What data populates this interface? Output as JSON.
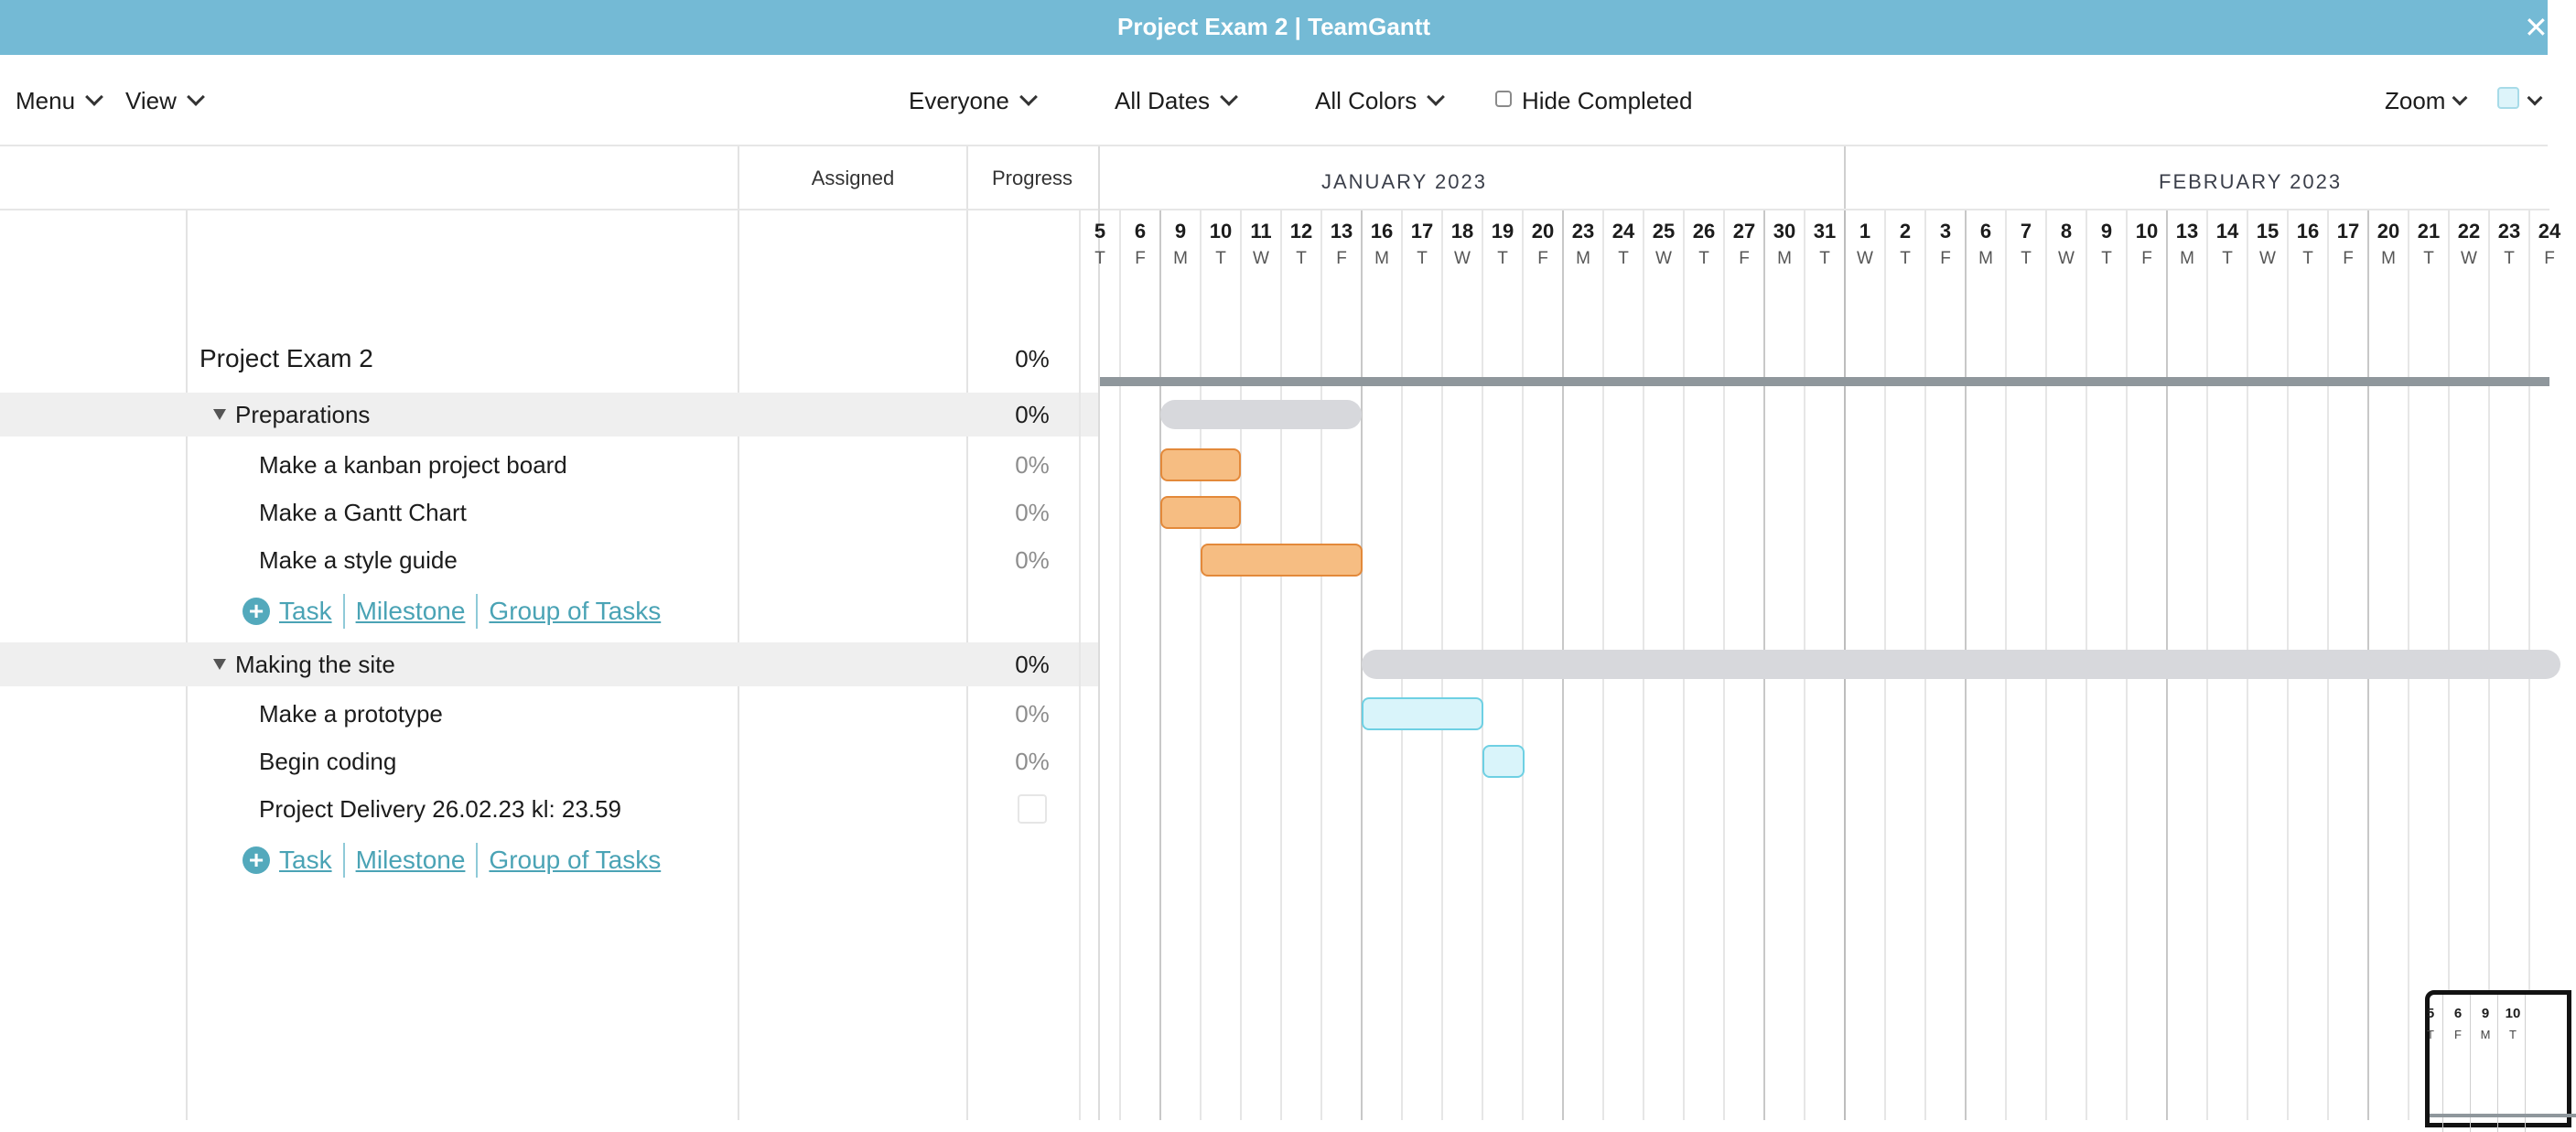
{
  "window": {
    "title": "Project Exam 2 | TeamGantt",
    "close_glyph": "✕"
  },
  "toolbar": {
    "menu": "Menu",
    "view": "View",
    "everyone": "Everyone",
    "all_dates": "All Dates",
    "all_colors": "All Colors",
    "hide_completed": "Hide Completed",
    "zoom": "Zoom"
  },
  "columns": {
    "assigned": "Assigned",
    "progress": "Progress"
  },
  "project": {
    "name": "Project Exam 2",
    "progress": "0%"
  },
  "groups": [
    {
      "name": "Preparations",
      "progress": "0%",
      "tasks": [
        {
          "name": "Make a kanban project board",
          "progress": "0%",
          "color": "#f6bd82",
          "start_day": "9 Jan",
          "end_day": "10 Jan"
        },
        {
          "name": "Make a Gantt Chart",
          "progress": "0%",
          "color": "#f6bd82",
          "start_day": "9 Jan",
          "end_day": "10 Jan"
        },
        {
          "name": "Make a style guide",
          "progress": "0%",
          "color": "#f6bd82",
          "start_day": "10 Jan",
          "end_day": "13 Jan"
        }
      ]
    },
    {
      "name": "Making the site",
      "progress": "0%",
      "tasks": [
        {
          "name": "Make a prototype",
          "progress": "0%",
          "color": "#d9f4fa",
          "start_day": "16 Jan",
          "end_day": "18 Jan"
        },
        {
          "name": "Begin coding",
          "progress": "0%",
          "color": "#d9f4fa",
          "start_day": "19 Jan",
          "end_day": "19 Jan"
        },
        {
          "name": "Project Delivery 26.02.23 kl: 23.59",
          "progress": "",
          "milestone": true
        }
      ]
    }
  ],
  "add_links": {
    "task": "Task",
    "milestone": "Milestone",
    "group": "Group of Tasks"
  },
  "timeline": {
    "months": [
      "JANUARY 2023",
      "FEBRUARY 2023"
    ],
    "days": [
      [
        "5",
        "T"
      ],
      [
        "6",
        "F"
      ],
      [
        "9",
        "M"
      ],
      [
        "10",
        "T"
      ],
      [
        "11",
        "W"
      ],
      [
        "12",
        "T"
      ],
      [
        "13",
        "F"
      ],
      [
        "16",
        "M"
      ],
      [
        "17",
        "T"
      ],
      [
        "18",
        "W"
      ],
      [
        "19",
        "T"
      ],
      [
        "20",
        "F"
      ],
      [
        "23",
        "M"
      ],
      [
        "24",
        "T"
      ],
      [
        "25",
        "W"
      ],
      [
        "26",
        "T"
      ],
      [
        "27",
        "F"
      ],
      [
        "30",
        "M"
      ],
      [
        "31",
        "T"
      ],
      [
        "1",
        "W"
      ],
      [
        "2",
        "T"
      ],
      [
        "3",
        "F"
      ],
      [
        "6",
        "M"
      ],
      [
        "7",
        "T"
      ],
      [
        "8",
        "W"
      ],
      [
        "9",
        "T"
      ],
      [
        "10",
        "F"
      ],
      [
        "13",
        "M"
      ],
      [
        "14",
        "T"
      ],
      [
        "15",
        "W"
      ],
      [
        "16",
        "T"
      ],
      [
        "17",
        "F"
      ],
      [
        "20",
        "M"
      ],
      [
        "21",
        "T"
      ],
      [
        "22",
        "W"
      ],
      [
        "23",
        "T"
      ],
      [
        "24",
        "F"
      ]
    ]
  },
  "mini_preview": {
    "days": [
      [
        "5",
        "T"
      ],
      [
        "6",
        "F"
      ],
      [
        "9",
        "M"
      ],
      [
        "10",
        "T"
      ]
    ]
  }
}
